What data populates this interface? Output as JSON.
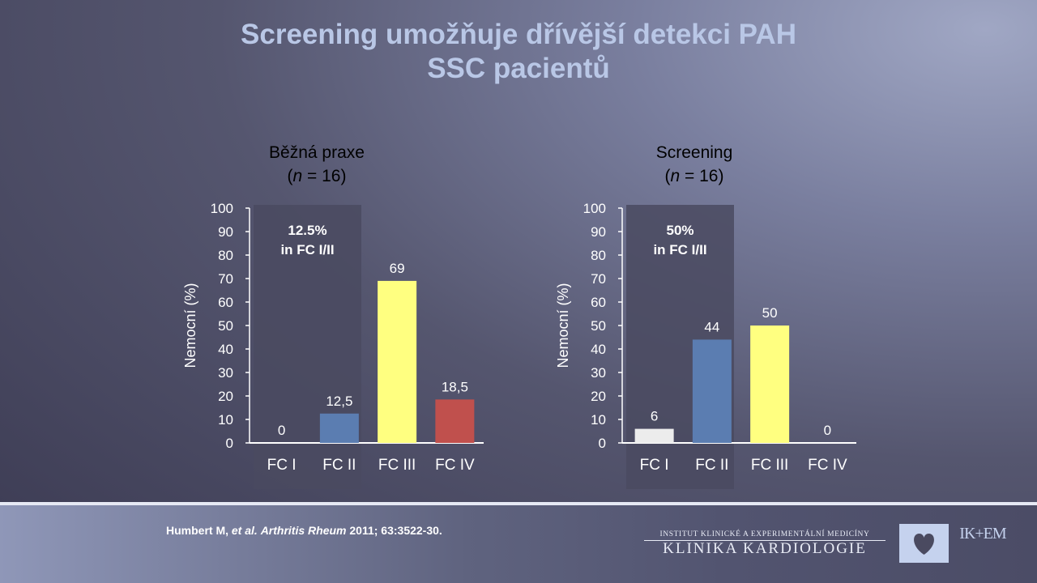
{
  "slide": {
    "title_line1": "Screening umožňuje dřívější detekci PAH",
    "title_line2": "SSC pacientů",
    "citation": {
      "authors": "Humbert M, ",
      "etal": "et al.",
      "journal": "Arthritis Rheum",
      "rest": " 2011; 63:3522-30."
    },
    "logo": {
      "institute": "INSTITUT KLINICKÉ A EXPERIMENTÁLNÍ MEDICÍNY",
      "clinic": "KLINIKA KARDIOLOGIE",
      "mark_top": "IK+EM",
      "heart_icon": "heart-icon"
    },
    "colors": {
      "title": "#b9c7e6",
      "fc1": "#ececec",
      "fc2": "#5b7db1",
      "fc3": "#ffff80",
      "fc4": "#c0504d",
      "highlight": "#4a4a60"
    }
  },
  "chart_data": [
    {
      "type": "bar",
      "title": "Běžná praxe",
      "subtitle_var": "n",
      "subtitle_rest": " = 16",
      "ylabel": "Nemocní (%)",
      "ylim": [
        0,
        100
      ],
      "yticks": [
        0,
        10,
        20,
        30,
        40,
        50,
        60,
        70,
        80,
        90,
        100
      ],
      "categories": [
        "FC I",
        "FC II",
        "FC III",
        "FC IV"
      ],
      "values": [
        0,
        12.5,
        69,
        18.5
      ],
      "data_labels": [
        "0",
        "12,5",
        "69",
        "18,5"
      ],
      "highlight_label": [
        "12.5%",
        "in FC I/II"
      ],
      "highlight_categories": [
        "FC I",
        "FC II"
      ]
    },
    {
      "type": "bar",
      "title": "Screening",
      "subtitle_var": "n",
      "subtitle_rest": " = 16",
      "ylabel": "Nemocní (%)",
      "ylim": [
        0,
        100
      ],
      "yticks": [
        0,
        10,
        20,
        30,
        40,
        50,
        60,
        70,
        80,
        90,
        100
      ],
      "categories": [
        "FC I",
        "FC II",
        "FC III",
        "FC IV"
      ],
      "values": [
        6,
        44,
        50,
        0
      ],
      "data_labels": [
        "6",
        "44",
        "50",
        "0"
      ],
      "highlight_label": [
        "50%",
        "in FC I/II"
      ],
      "highlight_categories": [
        "FC I",
        "FC II"
      ]
    }
  ]
}
